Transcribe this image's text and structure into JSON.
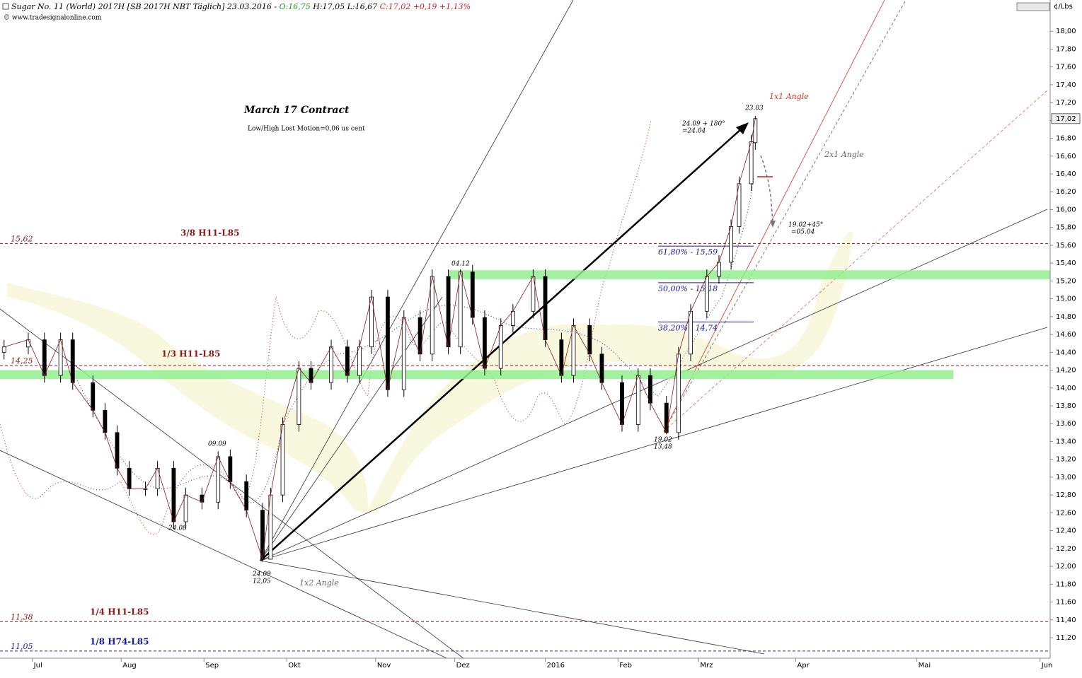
{
  "chart_data": {
    "type": "candlestick",
    "title_parts": [
      "Sugar No. 11 (World) 2017H [SB 2017H NBT  Täglich] 23.03.2016 -",
      "O:16,75",
      "H:17,05",
      "L:16,67",
      "C:17,02 +0,19 +1,13%"
    ],
    "source": "© www.tradesignalonline.com",
    "subtitle": "March 17 Contract",
    "note": "Low/High Lost Motion=0,06 us cent",
    "y_unit": "¢/Lbs",
    "last_price": {
      "value": 17.02,
      "label": "17,02"
    },
    "xlim": [
      0,
      260
    ],
    "xticks": [
      {
        "value": 8,
        "label": "Jul"
      },
      {
        "value": 30,
        "label": "Aug"
      },
      {
        "value": 50.5,
        "label": "Sep"
      },
      {
        "value": 71,
        "label": "Okt"
      },
      {
        "value": 93,
        "label": "Nov"
      },
      {
        "value": 112.6,
        "label": "Dez"
      },
      {
        "value": 135,
        "label": "2016"
      },
      {
        "value": 153,
        "label": "Feb"
      },
      {
        "value": 173,
        "label": "Mrz"
      },
      {
        "value": 197,
        "label": "Apr"
      },
      {
        "value": 227,
        "label": "Mai"
      },
      {
        "value": 257.5,
        "label": "Jun"
      }
    ],
    "ylim": [
      10.97,
      18.35
    ],
    "yticks": [
      {
        "value": 11.2,
        "label": "11,20"
      },
      {
        "value": 11.4,
        "label": "11,40"
      },
      {
        "value": 11.6,
        "label": "11,60"
      },
      {
        "value": 11.8,
        "label": "11,80"
      },
      {
        "value": 12.0,
        "label": "12,00"
      },
      {
        "value": 12.2,
        "label": "12,20"
      },
      {
        "value": 12.4,
        "label": "12,40"
      },
      {
        "value": 12.6,
        "label": "12,60"
      },
      {
        "value": 12.8,
        "label": "12,80"
      },
      {
        "value": 13.0,
        "label": "13,00"
      },
      {
        "value": 13.2,
        "label": "13,20"
      },
      {
        "value": 13.4,
        "label": "13,40"
      },
      {
        "value": 13.6,
        "label": "13,60"
      },
      {
        "value": 13.8,
        "label": "13,80"
      },
      {
        "value": 14.0,
        "label": "14,00"
      },
      {
        "value": 14.2,
        "label": "14,20"
      },
      {
        "value": 14.4,
        "label": "14,40"
      },
      {
        "value": 14.6,
        "label": "14,60"
      },
      {
        "value": 14.8,
        "label": "14,80"
      },
      {
        "value": 15.0,
        "label": "15,00"
      },
      {
        "value": 15.2,
        "label": "15,20"
      },
      {
        "value": 15.4,
        "label": "15,40"
      },
      {
        "value": 15.6,
        "label": "15,60"
      },
      {
        "value": 15.8,
        "label": "15,80"
      },
      {
        "value": 16.0,
        "label": "16,00"
      },
      {
        "value": 16.2,
        "label": "16,20"
      },
      {
        "value": 16.4,
        "label": "16,40"
      },
      {
        "value": 16.6,
        "label": "16,60"
      },
      {
        "value": 16.8,
        "label": "16,80"
      },
      {
        "value": 17.0,
        "label": "17,00"
      },
      {
        "value": 17.2,
        "label": "17,20"
      },
      {
        "value": 17.4,
        "label": "17,40"
      },
      {
        "value": 17.6,
        "label": "17,60"
      },
      {
        "value": 17.8,
        "label": "17,80"
      },
      {
        "value": 18.0,
        "label": "18,00"
      }
    ],
    "x": [
      1,
      7,
      11,
      15,
      18,
      23,
      26,
      29,
      32,
      36,
      39,
      43,
      46,
      50,
      54,
      57,
      61,
      65,
      67,
      70,
      74,
      77,
      82,
      86,
      89,
      92,
      96,
      100,
      104,
      107,
      111,
      114,
      117,
      120,
      124,
      127,
      132,
      135,
      139,
      142,
      146,
      149,
      154,
      158,
      161,
      165,
      168,
      171,
      175,
      178,
      181,
      183,
      186,
      187
    ],
    "open": [
      14.4,
      14.46,
      14.54,
      14.14,
      14.54,
      14.06,
      13.75,
      13.5,
      13.1,
      12.87,
      12.87,
      13.1,
      12.5,
      12.8,
      12.72,
      13.23,
      12.95,
      12.63,
      12.08,
      12.8,
      13.59,
      14.22,
      14.06,
      14.46,
      14.14,
      14.46,
      15.02,
      13.98,
      14.79,
      14.38,
      15.25,
      14.46,
      15.3,
      14.79,
      14.22,
      14.7,
      14.86,
      15.25,
      14.54,
      14.14,
      14.7,
      14.38,
      14.06,
      13.59,
      14.14,
      13.83,
      13.5,
      14.38,
      14.86,
      15.25,
      15.41,
      15.81,
      16.29,
      16.75
    ],
    "high": [
      14.54,
      14.62,
      14.62,
      14.62,
      14.62,
      14.14,
      13.83,
      13.58,
      13.18,
      12.95,
      13.18,
      13.18,
      12.88,
      12.88,
      13.29,
      13.31,
      13.03,
      12.71,
      12.88,
      13.67,
      14.3,
      14.3,
      14.54,
      14.54,
      14.54,
      15.1,
      15.1,
      14.87,
      14.87,
      15.33,
      15.33,
      15.33,
      15.38,
      14.87,
      14.78,
      14.94,
      15.33,
      15.33,
      14.62,
      14.78,
      14.78,
      14.46,
      14.14,
      14.22,
      14.22,
      13.91,
      14.46,
      14.94,
      15.33,
      15.49,
      15.89,
      16.37,
      16.84,
      17.05
    ],
    "low": [
      14.32,
      14.38,
      14.06,
      14.06,
      13.98,
      13.67,
      13.42,
      13.02,
      12.79,
      12.79,
      12.79,
      12.42,
      12.42,
      12.64,
      12.64,
      12.87,
      12.55,
      12.05,
      12.1,
      12.72,
      13.51,
      13.98,
      13.98,
      14.06,
      14.06,
      14.38,
      13.9,
      13.9,
      14.3,
      14.3,
      14.38,
      14.38,
      14.71,
      14.14,
      14.14,
      14.62,
      14.78,
      14.46,
      14.06,
      14.06,
      14.3,
      13.98,
      13.51,
      13.51,
      13.75,
      13.48,
      13.42,
      14.3,
      14.78,
      15.17,
      15.33,
      15.73,
      16.21,
      16.67
    ],
    "close": [
      14.46,
      14.54,
      14.14,
      14.54,
      14.06,
      13.75,
      13.5,
      13.1,
      12.87,
      12.87,
      13.1,
      12.5,
      12.8,
      12.72,
      13.23,
      12.95,
      12.63,
      12.08,
      12.8,
      13.59,
      14.22,
      14.06,
      14.46,
      14.14,
      14.46,
      15.02,
      13.98,
      14.79,
      14.38,
      15.25,
      14.46,
      15.3,
      14.79,
      14.22,
      14.7,
      14.86,
      15.25,
      14.54,
      14.14,
      14.7,
      14.38,
      14.06,
      13.59,
      14.14,
      13.83,
      13.5,
      14.38,
      14.86,
      15.25,
      15.41,
      15.81,
      16.29,
      16.76,
      17.02
    ],
    "levels": [
      {
        "name": "3/8 H11-L85",
        "value": 15.62,
        "label": "15,62",
        "color": "#8b1a1a"
      },
      {
        "name": "1/3 H11-L85",
        "value": 14.25,
        "label": "14,25",
        "color": "#8b1a1a"
      },
      {
        "name": "1/4 H11-L85",
        "value": 11.38,
        "label": "11,38",
        "color": "#8b1a1a"
      },
      {
        "name": "1/8 H74-L85",
        "value": 11.05,
        "label": "11,05",
        "color": "#1a1aa0"
      }
    ],
    "fib_levels": [
      {
        "value": 15.59,
        "label": "61,80% - 15,59"
      },
      {
        "value": 15.18,
        "label": "50,00% - 15,18"
      },
      {
        "value": 14.74,
        "label": "38,20% - 14,74"
      }
    ],
    "bands": [
      {
        "range": [
          15.22,
          15.32
        ],
        "xlim": [
          111,
          260
        ]
      },
      {
        "range": [
          14.1,
          14.2
        ],
        "xlim": [
          0,
          236
        ]
      }
    ],
    "annotations": [
      "1x1 Angle",
      "2x1 Angle",
      "1x2 Angle",
      "23.03",
      "24.09 + 180°",
      "=24.04",
      "19.02+45°",
      "=05.04",
      "04.12",
      "09.09",
      "24.08",
      "24.09",
      "12,05",
      "19.02",
      "13,48"
    ]
  }
}
